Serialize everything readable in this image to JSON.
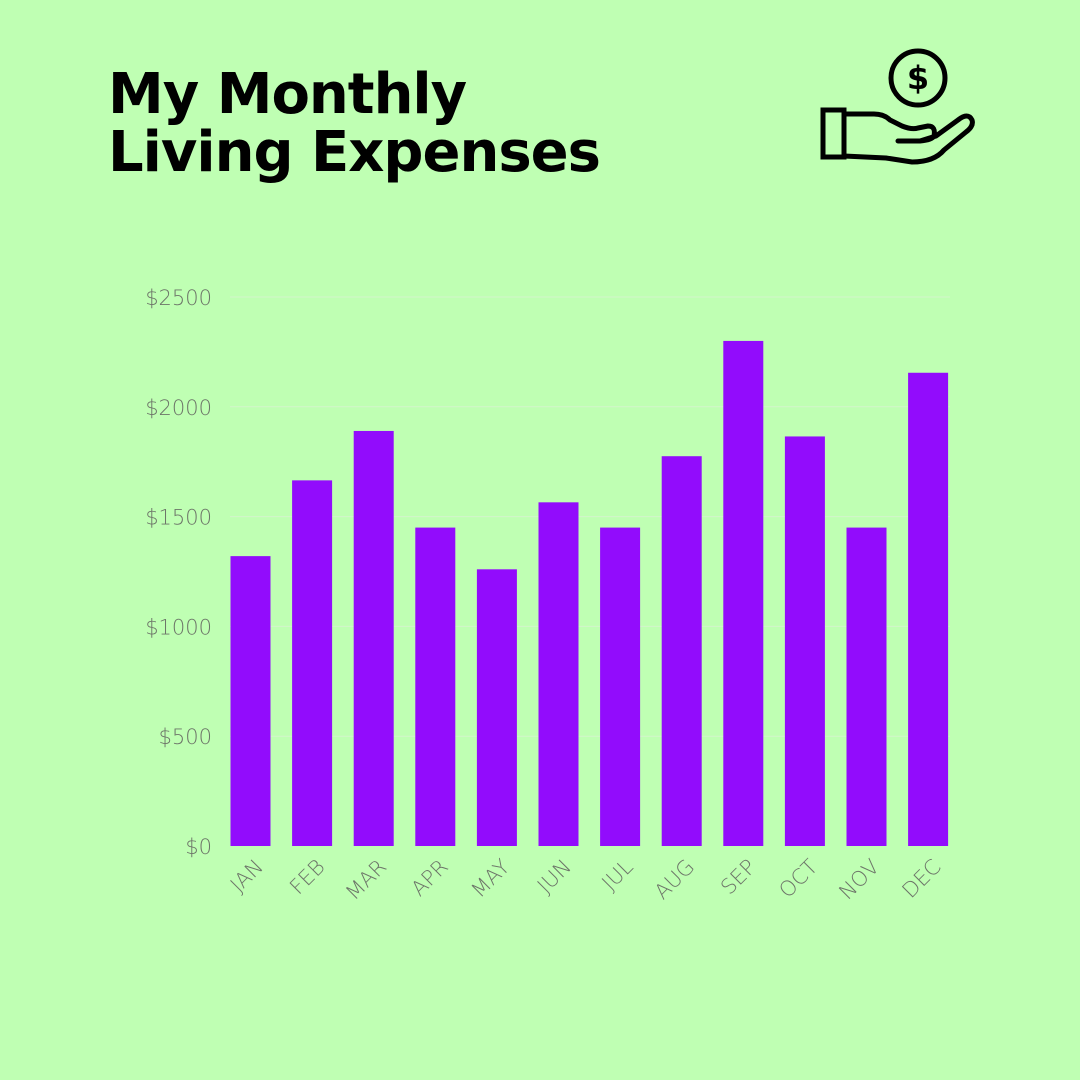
{
  "header": {
    "title_line1": "My Monthly",
    "title_line2": "Living Expenses"
  },
  "icons": {
    "money": "hand-holding-dollar-icon"
  },
  "colors": {
    "background": "#bfffb3",
    "bar": "#920cfc",
    "text": "#000000",
    "axis_text": "#6d7569",
    "grid": "#d3f5cb"
  },
  "chart_data": {
    "type": "bar",
    "categories": [
      "JAN",
      "FEB",
      "MAR",
      "APR",
      "MAY",
      "JUN",
      "JUL",
      "AUG",
      "SEP",
      "OCT",
      "NOV",
      "DEC"
    ],
    "values": [
      1320,
      1665,
      1890,
      1450,
      1260,
      1565,
      1450,
      1775,
      2300,
      1865,
      1450,
      2155
    ],
    "ylim": [
      0,
      2500
    ],
    "yticks": [
      0,
      500,
      1000,
      1500,
      2000,
      2500
    ],
    "ytick_labels": [
      "$0",
      "$500",
      "$1000",
      "$1500",
      "$2000",
      "$2500"
    ],
    "grid": true,
    "legend": "none",
    "xlabel": "",
    "ylabel": ""
  }
}
